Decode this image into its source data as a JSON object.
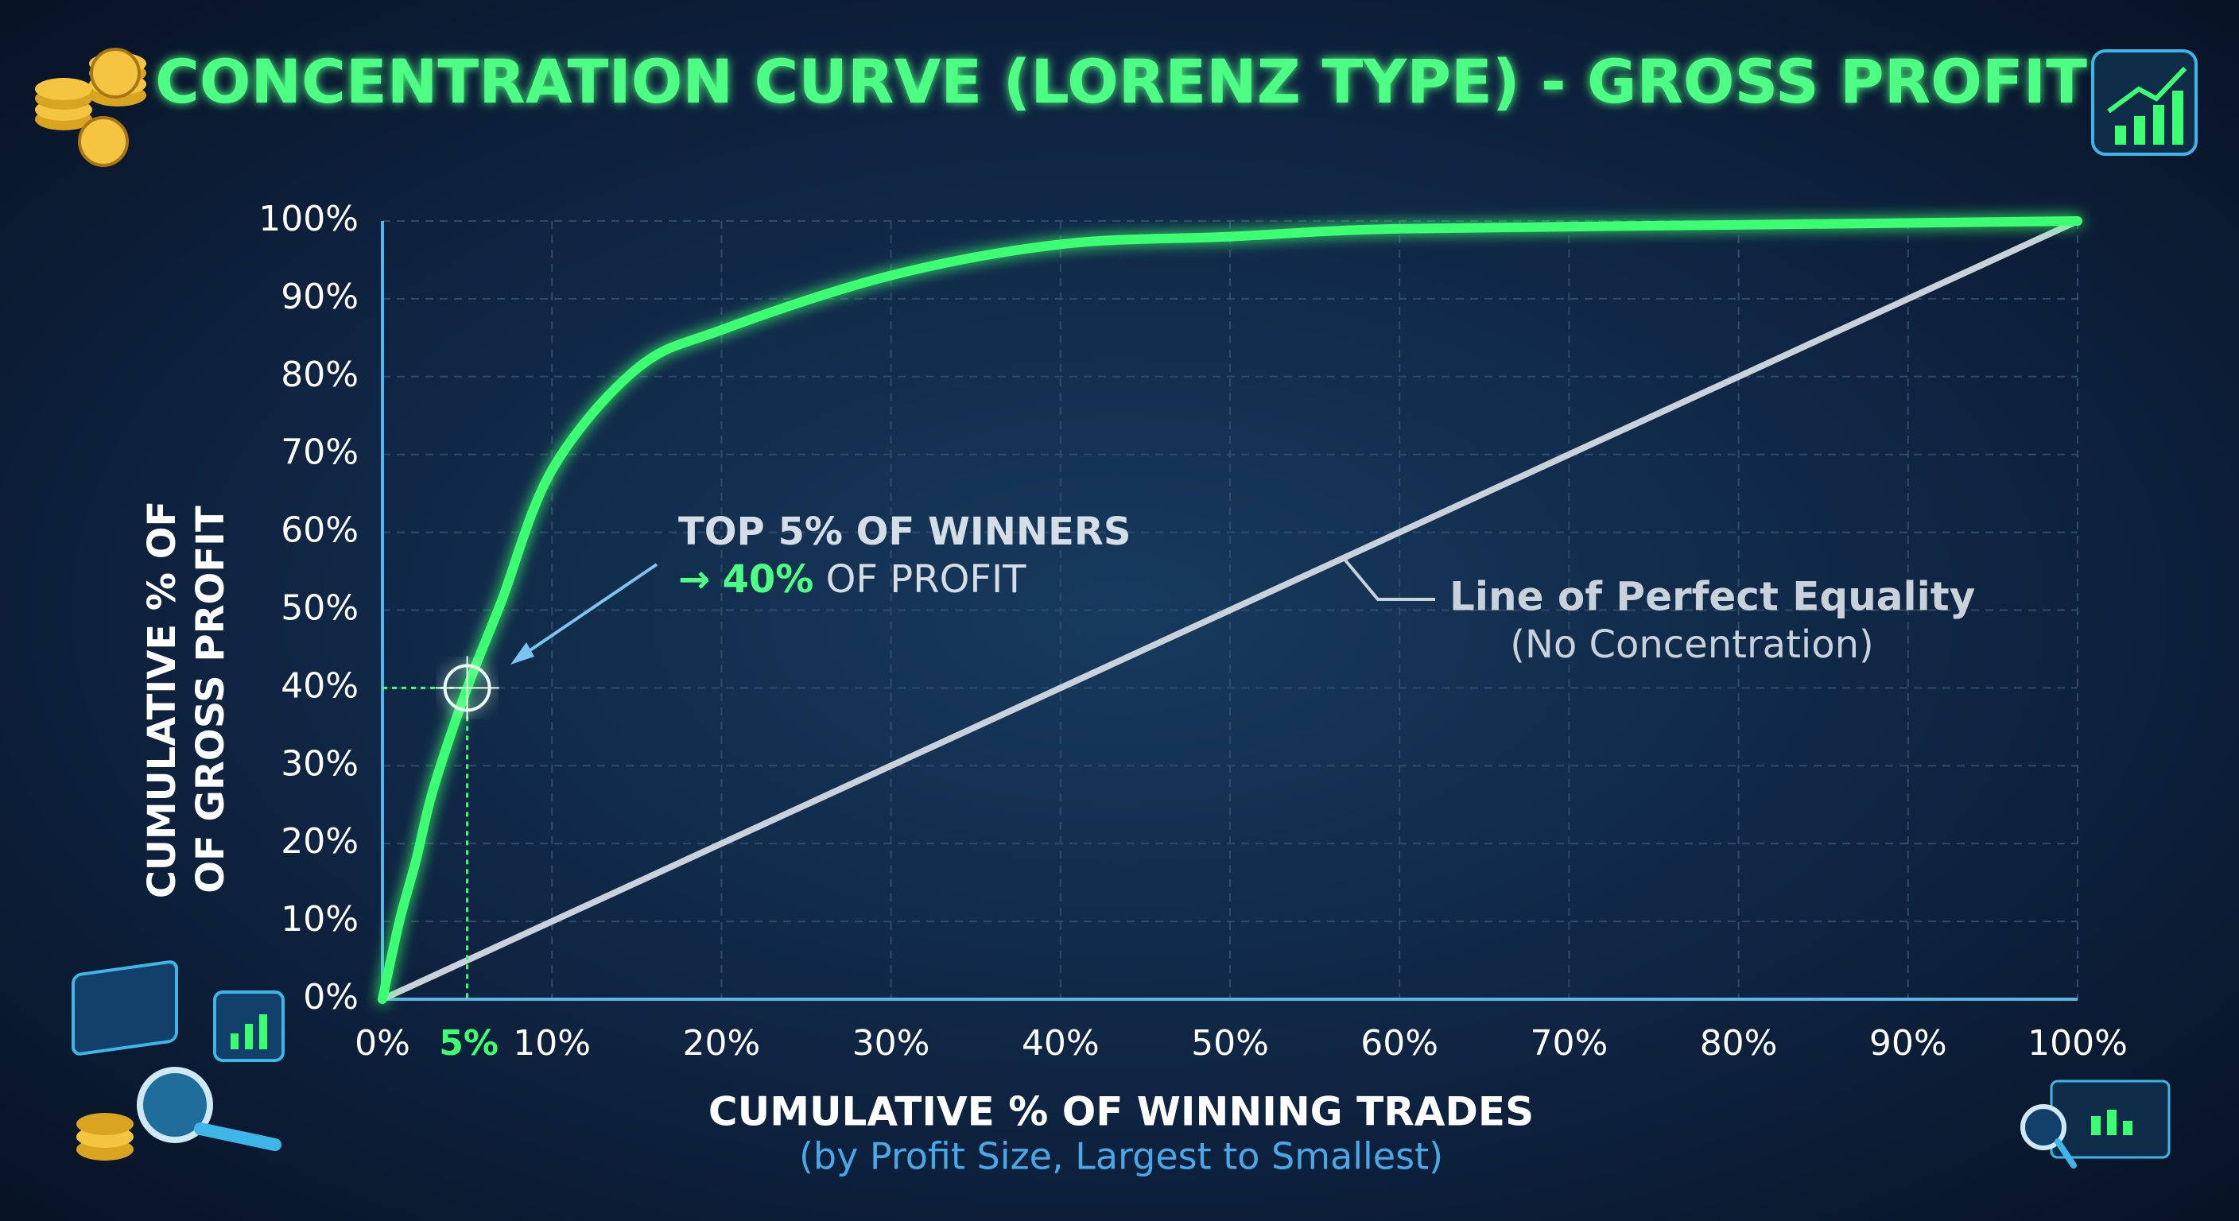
{
  "chart_data": {
    "type": "line",
    "title": "CONCENTRATION CURVE (LORENZ TYPE) - GROSS PROFIT",
    "xlabel": "CUMULATIVE % OF WINNING TRADES",
    "xlabel_note": "(by Profit Size, Largest to Smallest)",
    "ylabel": [
      "CUMULATIVE % OF",
      "OF GROSS PROFIT"
    ],
    "xlim": [
      0,
      100
    ],
    "ylim": [
      0,
      100
    ],
    "xticks": [
      {
        "value": 0,
        "label": "0%"
      },
      {
        "value": 10,
        "label": "10%"
      },
      {
        "value": 20,
        "label": "20%"
      },
      {
        "value": 30,
        "label": "30%"
      },
      {
        "value": 40,
        "label": "40%"
      },
      {
        "value": 50,
        "label": "50%"
      },
      {
        "value": 60,
        "label": "60%"
      },
      {
        "value": 70,
        "label": "70%"
      },
      {
        "value": 80,
        "label": "80%"
      },
      {
        "value": 90,
        "label": "90%"
      },
      {
        "value": 100,
        "label": "100%"
      }
    ],
    "yticks": [
      {
        "value": 0,
        "label": "0%"
      },
      {
        "value": 10,
        "label": "10%"
      },
      {
        "value": 20,
        "label": "20%"
      },
      {
        "value": 30,
        "label": "30%"
      },
      {
        "value": 40,
        "label": "40%"
      },
      {
        "value": 50,
        "label": "50%"
      },
      {
        "value": 60,
        "label": "60%"
      },
      {
        "value": 70,
        "label": "70%"
      },
      {
        "value": 80,
        "label": "80%"
      },
      {
        "value": 90,
        "label": "90%"
      },
      {
        "value": 100,
        "label": "100%"
      }
    ],
    "grid": true,
    "series": [
      {
        "color": "#3dff72",
        "x": [
          0,
          1,
          2,
          3,
          5,
          7,
          10,
          15,
          20,
          30,
          40,
          50,
          60,
          80,
          100
        ],
        "values": [
          0,
          10,
          18,
          27,
          40,
          51,
          68,
          81,
          86,
          93,
          97,
          98,
          99,
          99.5,
          100
        ]
      },
      {
        "name": "Line of Perfect Equality",
        "color": "#c9d1da",
        "x": [
          0,
          100
        ],
        "values": [
          0,
          100
        ]
      }
    ],
    "marker": {
      "x": 5,
      "y": 40,
      "x_label": "5%",
      "color": "#3dff72"
    },
    "annotation": {
      "line1": "TOP 5% OF WINNERS",
      "arrow": "→",
      "highlight": "40%",
      "rest": "OF PROFIT"
    },
    "equality_note": "(No Concentration)"
  }
}
